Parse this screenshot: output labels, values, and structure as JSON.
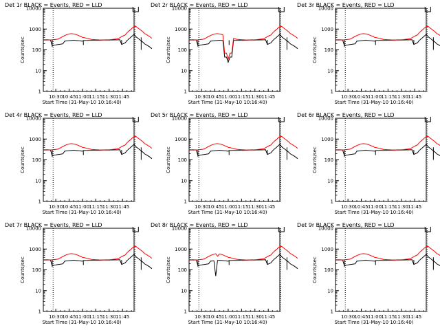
{
  "chart_data": [
    {
      "type": "line",
      "title": "Det 1r BLACK = Events, RED = LLD",
      "xlabel": "Start Time (31-May-10 10:16:40)",
      "ylabel": "Counts/sec",
      "y_scale": "log",
      "ylim": [
        1,
        10000
      ],
      "xlim": [
        "10:16",
        "11:58"
      ],
      "x_ticks": [
        "10:30",
        "10:45",
        "11:00",
        "11:15",
        "11:30",
        "11:45"
      ],
      "y_ticks": [
        "1",
        "10",
        "100",
        "1000",
        "10000"
      ],
      "grid": false,
      "variant": "plain",
      "series": [
        {
          "color": "#000000"
        },
        {
          "color": "#ff0000"
        }
      ]
    },
    {
      "type": "line",
      "title": "Det 2r BLACK = Events, RED = LLD",
      "xlabel": "Start Time (31-May-10 10:16:40)",
      "ylabel": "Counts/sec",
      "y_scale": "log",
      "ylim": [
        1,
        10000
      ],
      "xlim": [
        "10:16",
        "11:58"
      ],
      "x_ticks": [
        "10:30",
        "10:45",
        "11:00",
        "11:15",
        "11:30",
        "11:45"
      ],
      "y_ticks": [
        "1",
        "10",
        "100",
        "1000",
        "10000"
      ],
      "grid": false,
      "variant": "dip",
      "series": [
        {
          "color": "#000000"
        },
        {
          "color": "#ff0000"
        }
      ]
    },
    {
      "type": "line",
      "title": "Det 3r BLACK = Events, RED = LLD",
      "xlabel": "Start Time (31-May-10 10:16:40)",
      "ylabel": "Counts/sec",
      "y_scale": "log",
      "ylim": [
        1,
        10000
      ],
      "xlim": [
        "10:16",
        "11:58"
      ],
      "x_ticks": [
        "10:30",
        "10:45",
        "11:00",
        "11:15",
        "11:30",
        "11:45"
      ],
      "y_ticks": [
        "1",
        "10",
        "100",
        "1000",
        "10000"
      ],
      "grid": false,
      "variant": "plain",
      "series": [
        {
          "color": "#000000"
        },
        {
          "color": "#ff0000"
        }
      ]
    },
    {
      "type": "line",
      "title": "Det 4r BLACK = Events, RED = LLD",
      "xlabel": "Start Time (31-May-10 10:16:40)",
      "ylabel": "Counts/sec",
      "y_scale": "log",
      "ylim": [
        1,
        10000
      ],
      "xlim": [
        "10:16",
        "11:58"
      ],
      "x_ticks": [
        "10:30",
        "10:45",
        "11:00",
        "11:15",
        "11:30",
        "11:45"
      ],
      "y_ticks": [
        "1",
        "10",
        "100",
        "1000",
        "10000"
      ],
      "grid": false,
      "variant": "plain",
      "series": [
        {
          "color": "#000000"
        },
        {
          "color": "#ff0000"
        }
      ]
    },
    {
      "type": "line",
      "title": "Det 5r BLACK = Events, RED = LLD",
      "xlabel": "Start Time (31-May-10 10:16:40)",
      "ylabel": "Counts/sec",
      "y_scale": "log",
      "ylim": [
        1,
        10000
      ],
      "xlim": [
        "10:16",
        "11:58"
      ],
      "x_ticks": [
        "10:30",
        "10:45",
        "11:00",
        "11:15",
        "11:30",
        "11:45"
      ],
      "y_ticks": [
        "1",
        "10",
        "100",
        "1000",
        "10000"
      ],
      "grid": false,
      "variant": "plain",
      "series": [
        {
          "color": "#000000"
        },
        {
          "color": "#ff0000"
        }
      ]
    },
    {
      "type": "line",
      "title": "Det 6r BLACK = Events, RED = LLD",
      "xlabel": "Start Time (31-May-10 10:16:40)",
      "ylabel": "Counts/sec",
      "y_scale": "log",
      "ylim": [
        1,
        10000
      ],
      "xlim": [
        "10:16",
        "11:58"
      ],
      "x_ticks": [
        "10:30",
        "10:45",
        "11:00",
        "11:15",
        "11:30",
        "11:45"
      ],
      "y_ticks": [
        "1",
        "10",
        "100",
        "1000",
        "10000"
      ],
      "grid": false,
      "variant": "plain",
      "series": [
        {
          "color": "#000000"
        },
        {
          "color": "#ff0000"
        }
      ]
    },
    {
      "type": "line",
      "title": "Det 7r BLACK = Events, RED = LLD",
      "xlabel": "Start Time (31-May-10 10:16:40)",
      "ylabel": "Counts/sec",
      "y_scale": "log",
      "ylim": [
        1,
        10000
      ],
      "xlim": [
        "10:16",
        "11:58"
      ],
      "x_ticks": [
        "10:30",
        "10:45",
        "11:00",
        "11:15",
        "11:30",
        "11:45"
      ],
      "y_ticks": [
        "1",
        "10",
        "100",
        "1000",
        "10000"
      ],
      "grid": false,
      "variant": "plain",
      "series": [
        {
          "color": "#000000"
        },
        {
          "color": "#ff0000"
        }
      ]
    },
    {
      "type": "line",
      "title": "Det 8r BLACK = Events, RED = LLD",
      "xlabel": "Start Time (31-May-10 10:16:40)",
      "ylabel": "Counts/sec",
      "y_scale": "log",
      "ylim": [
        1,
        10000
      ],
      "xlim": [
        "10:16",
        "11:58"
      ],
      "x_ticks": [
        "10:30",
        "10:45",
        "11:00",
        "11:15",
        "11:30",
        "11:45"
      ],
      "y_ticks": [
        "1",
        "10",
        "100",
        "1000",
        "10000"
      ],
      "grid": false,
      "variant": "spike",
      "series": [
        {
          "color": "#000000"
        },
        {
          "color": "#ff0000"
        }
      ]
    },
    {
      "type": "line",
      "title": "Det 9r BLACK = Events, RED = LLD",
      "xlabel": "Start Time (31-May-10 10:16:40)",
      "ylabel": "Counts/sec",
      "y_scale": "log",
      "ylim": [
        1,
        10000
      ],
      "xlim": [
        "10:16",
        "11:58"
      ],
      "x_ticks": [
        "10:30",
        "10:45",
        "11:00",
        "11:15",
        "11:30",
        "11:45"
      ],
      "y_ticks": [
        "1",
        "10",
        "100",
        "1000",
        "10000"
      ],
      "grid": false,
      "variant": "plain",
      "series": [
        {
          "color": "#000000"
        },
        {
          "color": "#ff0000"
        }
      ]
    }
  ]
}
